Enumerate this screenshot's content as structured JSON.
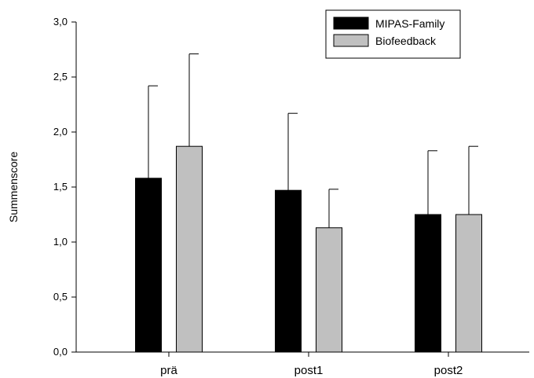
{
  "chart_data": {
    "type": "bar",
    "ylabel": "Summenscore",
    "xlabel": "",
    "ylim": [
      0,
      3.0
    ],
    "yticks": [
      "0,0",
      "0,5",
      "1,0",
      "1,5",
      "2,0",
      "2,5",
      "3,0"
    ],
    "ytick_values": [
      0,
      0.5,
      1.0,
      1.5,
      2.0,
      2.5,
      3.0
    ],
    "categories": [
      "prä",
      "post1",
      "post2"
    ],
    "series": [
      {
        "name": "MIPAS-Family",
        "color": "#000000",
        "values": [
          1.58,
          1.47,
          1.25
        ],
        "error_upper": [
          2.42,
          2.17,
          1.83
        ]
      },
      {
        "name": "Biofeedback",
        "color": "#c0c0c0",
        "values": [
          1.87,
          1.13,
          1.25
        ],
        "error_upper": [
          2.71,
          1.48,
          1.87
        ]
      }
    ],
    "legend_position": "top-right",
    "grid": false
  }
}
